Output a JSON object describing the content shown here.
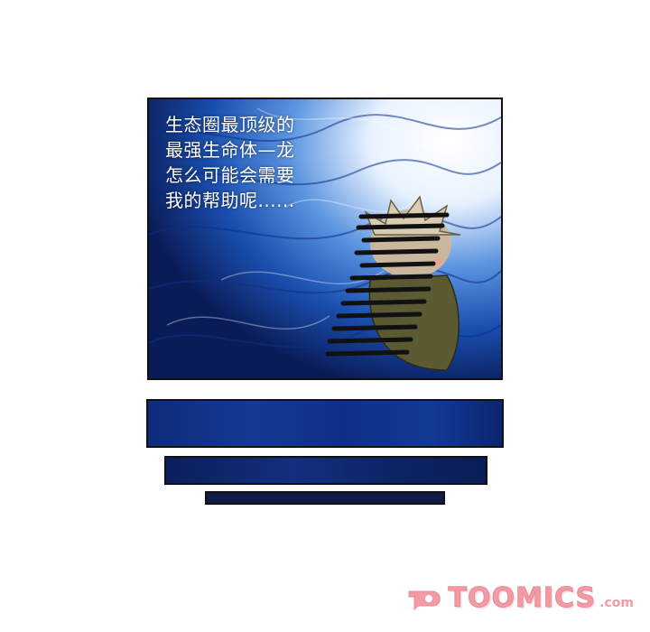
{
  "panel": {
    "caption_lines": [
      "生态圈最顶级的",
      "最强生命体—龙",
      "怎么可能会需要",
      "我的帮助呢......"
    ]
  },
  "watermark": {
    "brand": "TOOMICS",
    "suffix": ".com",
    "color": "#f39aa4"
  },
  "colors": {
    "deep_blue": "#0b1f5e",
    "mid_blue": "#1a4fb0",
    "light_blue": "#6fa6e8"
  }
}
